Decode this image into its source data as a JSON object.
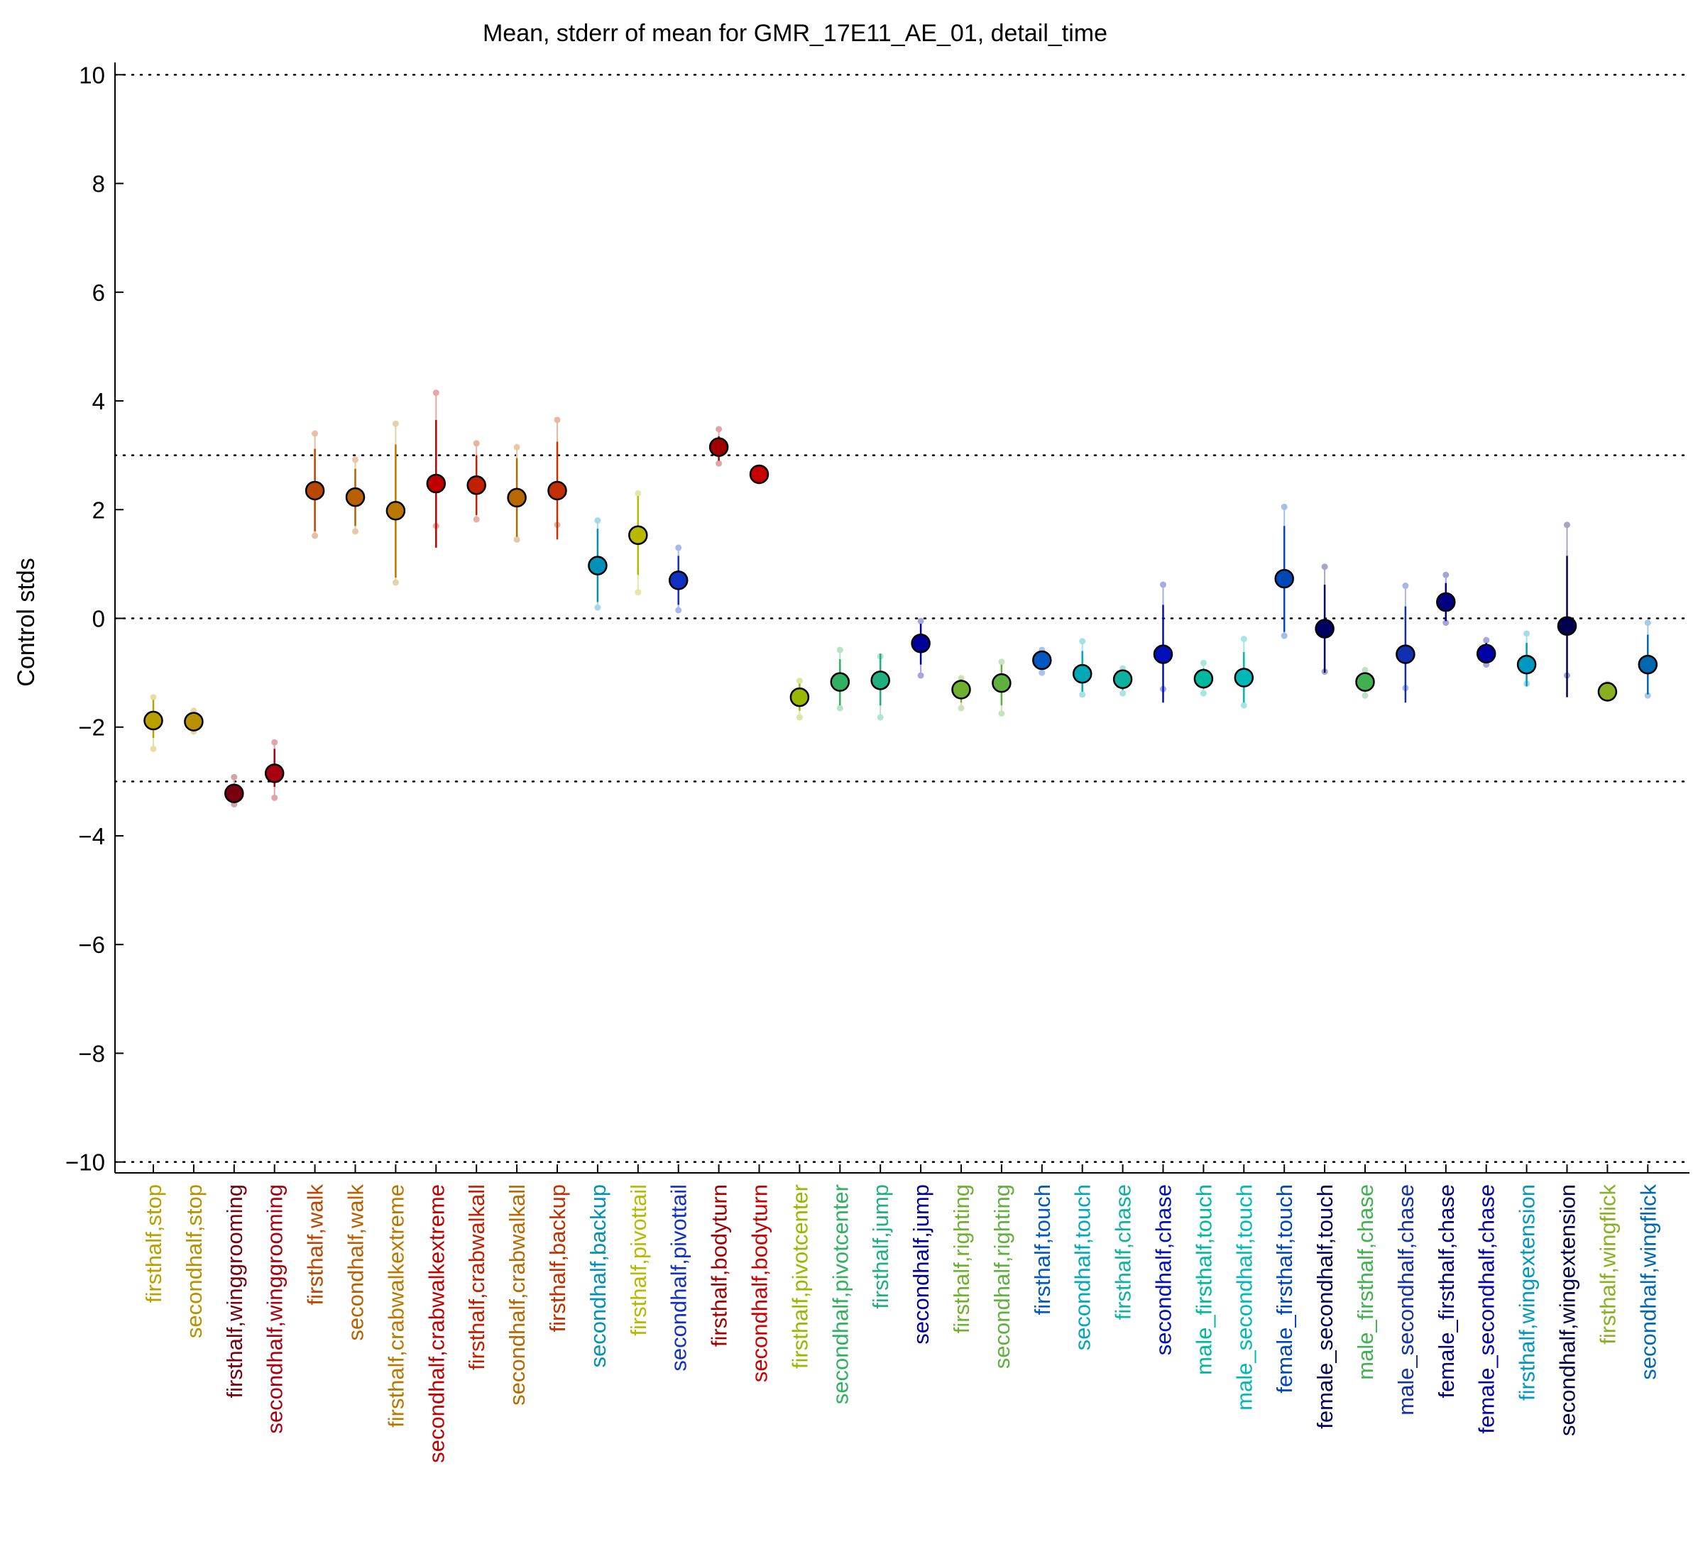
{
  "chart_data": {
    "type": "scatter",
    "title": "Mean, stderr of mean for GMR_17E11_AE_01, detail_time",
    "xlabel": "",
    "ylabel": "Control stds",
    "ylim": [
      -10.2,
      10.2
    ],
    "yticks": [
      -10,
      -8,
      -6,
      -4,
      -2,
      0,
      2,
      4,
      6,
      8,
      10
    ],
    "ytick_labels": [
      "−10",
      "−8",
      "−6",
      "−4",
      "−2",
      "0",
      "2",
      "4",
      "6",
      "8",
      "10"
    ],
    "reference_lines": [
      -10,
      -3,
      0,
      3,
      10
    ],
    "grid": false,
    "categories": [
      "firsthalf,stop",
      "secondhalf,stop",
      "firsthalf,winggrooming",
      "secondhalf,winggrooming",
      "firsthalf,walk",
      "secondhalf,walk",
      "firsthalf,crabwalkextreme",
      "secondhalf,crabwalkextreme",
      "firsthalf,crabwalkall",
      "secondhalf,crabwalkall",
      "firsthalf,backup",
      "secondhalf,backup",
      "firsthalf,pivottail",
      "secondhalf,pivottail",
      "firsthalf,bodyturn",
      "secondhalf,bodyturn",
      "firsthalf,pivotcenter",
      "secondhalf,pivotcenter",
      "firsthalf,jump",
      "secondhalf,jump",
      "firsthalf,righting",
      "secondhalf,righting",
      "firsthalf,touch",
      "secondhalf,touch",
      "firsthalf,chase",
      "secondhalf,chase",
      "male_firsthalf,touch",
      "male_secondhalf,touch",
      "female_firsthalf,touch",
      "female_secondhalf,touch",
      "male_firsthalf,chase",
      "male_secondhalf,chase",
      "female_firsthalf,chase",
      "female_secondhalf,chase",
      "firsthalf,wingextension",
      "secondhalf,wingextension",
      "firsthalf,wingflick",
      "secondhalf,wingflick"
    ],
    "colors": [
      "#b8a000",
      "#b89000",
      "#7a0010",
      "#a80010",
      "#b84800",
      "#b86000",
      "#b87800",
      "#c00000",
      "#c02000",
      "#b86800",
      "#c03000",
      "#0090b8",
      "#b8b800",
      "#1030c0",
      "#a00000",
      "#c80000",
      "#98b800",
      "#30b060",
      "#20b080",
      "#000098",
      "#70b030",
      "#60b040",
      "#0058c0",
      "#00a8b8",
      "#10b0a0",
      "#0010b8",
      "#00b8a0",
      "#00b8b8",
      "#0048b8",
      "#000060",
      "#40b050",
      "#1030b0",
      "#000080",
      "#0000a8",
      "#0098c0",
      "#000050",
      "#88b020",
      "#0068b0"
    ],
    "means": [
      -1.88,
      -1.9,
      -3.22,
      -2.85,
      2.35,
      2.23,
      1.98,
      2.48,
      2.45,
      2.22,
      2.35,
      0.97,
      1.53,
      0.7,
      3.15,
      2.65,
      -1.45,
      -1.17,
      -1.14,
      -0.46,
      -1.31,
      -1.19,
      -0.77,
      -1.02,
      -1.12,
      -0.66,
      -1.11,
      -1.09,
      0.73,
      -0.19,
      -1.17,
      -0.66,
      0.3,
      -0.65,
      -0.85,
      -0.14,
      -1.35,
      -0.85
    ],
    "stderr_low": [
      -2.2,
      -2.0,
      -3.35,
      -3.1,
      1.6,
      1.7,
      0.75,
      1.3,
      1.9,
      1.5,
      1.45,
      0.3,
      0.8,
      0.25,
      2.9,
      2.62,
      -1.7,
      -1.6,
      -1.6,
      -0.85,
      -1.55,
      -1.6,
      -0.92,
      -1.35,
      -1.32,
      -1.55,
      -1.3,
      -1.55,
      -0.25,
      -1.0,
      -1.35,
      -1.55,
      -0.05,
      -0.8,
      -1.25,
      -1.45,
      -1.45,
      -1.4
    ],
    "stderr_high": [
      -1.5,
      -1.78,
      -3.05,
      -2.4,
      3.12,
      2.75,
      3.2,
      3.65,
      3.0,
      2.95,
      3.25,
      1.65,
      2.25,
      1.15,
      3.35,
      2.7,
      -1.2,
      -0.75,
      -0.65,
      -0.1,
      -1.12,
      -0.85,
      -0.65,
      -0.6,
      -0.98,
      0.25,
      -0.92,
      -0.62,
      1.7,
      0.62,
      -1.0,
      0.22,
      0.65,
      -0.45,
      -0.45,
      1.15,
      -1.22,
      -0.3
    ],
    "faint_low": [
      -2.4,
      -2.08,
      -3.42,
      -3.3,
      1.52,
      1.6,
      0.66,
      1.7,
      1.82,
      1.45,
      1.72,
      0.2,
      0.48,
      0.15,
      2.85,
      2.6,
      -1.82,
      -1.65,
      -1.82,
      -1.05,
      -1.65,
      -1.75,
      -1.0,
      -1.4,
      -1.38,
      -1.3,
      -1.38,
      -1.6,
      -0.32,
      -0.98,
      -1.42,
      -1.28,
      -0.08,
      -0.85,
      -1.2,
      -1.05,
      -1.48,
      -1.42
    ],
    "faint_high": [
      -1.45,
      -1.7,
      -2.92,
      -2.28,
      3.4,
      2.92,
      3.58,
      4.15,
      3.22,
      3.15,
      3.65,
      1.8,
      2.3,
      1.3,
      3.48,
      2.72,
      -1.15,
      -0.58,
      -0.7,
      -0.05,
      -1.1,
      -0.8,
      -0.58,
      -0.42,
      -0.92,
      0.62,
      -0.82,
      -0.38,
      2.05,
      0.95,
      -0.95,
      0.6,
      0.8,
      -0.4,
      -0.28,
      1.72,
      -1.2,
      -0.08
    ]
  }
}
